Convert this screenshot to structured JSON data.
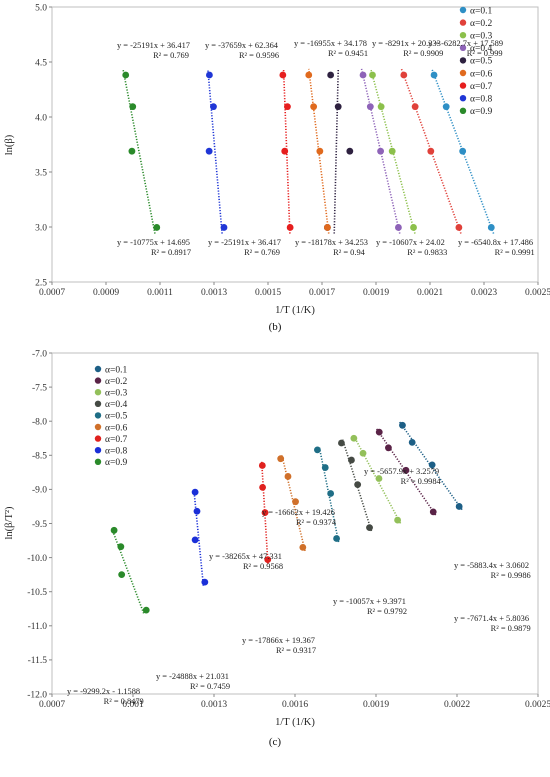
{
  "chart_data": [
    {
      "type": "scatter",
      "panel": "b",
      "caption": "(b)",
      "xlabel": "1/T (1/K)",
      "ylabel": "ln(β)",
      "xlim": [
        0.0007,
        0.0025
      ],
      "ylim": [
        2.5,
        5.0
      ],
      "xticks": [
        "0.0007",
        "0.0009",
        "0.0011",
        "0.0013",
        "0.0015",
        "0.0017",
        "0.0019",
        "0.0021",
        "0.0023",
        "0.0025"
      ],
      "yticks": [
        "2.5",
        "3.0",
        "3.5",
        "4.0",
        "4.5",
        "5.0"
      ],
      "legend_position": "top-right",
      "y_levels": [
        2.996,
        3.689,
        4.094,
        4.382
      ],
      "series": [
        {
          "name": "α=0.1",
          "color": "#2e8fc5",
          "x": [
            0.002327,
            0.002221,
            0.00216,
            0.002115
          ],
          "slope": -6540.8,
          "intercept": 17.486
        },
        {
          "name": "α=0.2",
          "color": "#e0413a",
          "x": [
            0.002207,
            0.002103,
            0.002045,
            0.002003
          ],
          "slope": -6282.7,
          "intercept": 17.589
        },
        {
          "name": "α=0.3",
          "color": "#8cc04b",
          "x": [
            0.002039,
            0.00196,
            0.001919,
            0.001887
          ],
          "slope": -8291.0,
          "intercept": 20.333
        },
        {
          "name": "α=0.4",
          "color": "#8e63b8",
          "x": [
            0.001983,
            0.001917,
            0.001879,
            0.001852
          ],
          "slope": -10607.0,
          "intercept": 24.02
        },
        {
          "name": "α=0.5",
          "color": "#2e2140",
          "x": [
            0.00172,
            0.001803,
            0.00176,
            0.001732
          ],
          "slope": -16955.0,
          "intercept": 34.178
        },
        {
          "name": "α=0.6",
          "color": "#e06a1e",
          "x": [
            0.00172,
            0.001692,
            0.001669,
            0.001651
          ],
          "slope": -18178.0,
          "intercept": 34.253
        },
        {
          "name": "α=0.7",
          "color": "#e61e1e",
          "x": [
            0.001582,
            0.001562,
            0.001572,
            0.001555
          ],
          "slope": -25191.0,
          "intercept": 36.417
        },
        {
          "name": "α=0.8",
          "color": "#1f36d6",
          "x": [
            0.001337,
            0.001282,
            0.001298,
            0.001283
          ],
          "slope": -37659.0,
          "intercept": 62.364
        },
        {
          "name": "α=0.9",
          "color": "#2a8a2a",
          "x": [
            0.001088,
            0.000996,
            0.000999,
            0.000973
          ],
          "slope": -10775.0,
          "intercept": 14.695
        }
      ],
      "annotations": [
        {
          "eq": "y = -25191x + 36.417",
          "r2": "R² = 0.769"
        },
        {
          "eq": "y = -37659x + 62.364",
          "r2": "R² = 0.9596"
        },
        {
          "eq": "y = -16955x + 34.178",
          "r2": "R² = 0.9451"
        },
        {
          "eq": "y = -8291x + 20.333",
          "r2": "R² = 0.9909"
        },
        {
          "eq": "y = -6282.7x + 17.589",
          "r2": "R² = 0.999"
        },
        {
          "eq": "y = -10775x + 14.695",
          "r2": "R² = 0.8917"
        },
        {
          "eq": "y = -25191x + 36.417",
          "r2": "R² = 0.769"
        },
        {
          "eq": "y = -18178x + 34.253",
          "r2": "R² = 0.94"
        },
        {
          "eq": "y = -10607x + 24.02",
          "r2": "R² = 0.9833"
        },
        {
          "eq": "y = -6540.8x + 17.486",
          "r2": "R² = 0.9991"
        }
      ]
    },
    {
      "type": "scatter",
      "panel": "c",
      "caption": "(c)",
      "xlabel": "1/T (1/K)",
      "ylabel": "ln(β/T²)",
      "xlim": [
        0.0007,
        0.0025
      ],
      "ylim": [
        -12.0,
        -7.0
      ],
      "xticks": [
        "0.0007",
        "0.001",
        "0.0013",
        "0.0016",
        "0.0019",
        "0.0022",
        "0.0025"
      ],
      "yticks": [
        "-7.0",
        "-7.5",
        "-8.0",
        "-8.5",
        "-9.0",
        "-9.5",
        "-10.0",
        "-10.5",
        "-11.0",
        "-11.5",
        "-12.0"
      ],
      "legend_position": "top-left",
      "series": [
        {
          "name": "α=0.1",
          "color": "#1d5f86",
          "x": [
            0.001998,
            0.002034,
            0.002108,
            0.002208
          ],
          "y": [
            -8.06,
            -8.31,
            -8.64,
            -9.25
          ]
        },
        {
          "name": "α=0.2",
          "color": "#5a2347",
          "x": [
            0.001912,
            0.001946,
            0.002011,
            0.002112
          ],
          "y": [
            -8.16,
            -8.39,
            -8.72,
            -9.33
          ]
        },
        {
          "name": "α=0.3",
          "color": "#93c05a",
          "x": [
            0.001818,
            0.001852,
            0.001911,
            0.00198
          ],
          "y": [
            -8.25,
            -8.47,
            -8.84,
            -9.45
          ]
        },
        {
          "name": "α=0.4",
          "color": "#454a44",
          "x": [
            0.001772,
            0.001809,
            0.001832,
            0.001876
          ],
          "y": [
            -8.32,
            -8.57,
            -8.93,
            -9.56
          ]
        },
        {
          "name": "α=0.5",
          "color": "#1f6e86",
          "x": [
            0.001683,
            0.001712,
            0.001732,
            0.001754
          ],
          "y": [
            -8.42,
            -8.68,
            -9.06,
            -9.72
          ]
        },
        {
          "name": "α=0.6",
          "color": "#d0702a",
          "x": [
            0.001547,
            0.001574,
            0.001602,
            0.001629
          ],
          "y": [
            -8.55,
            -8.81,
            -9.18,
            -9.85
          ]
        },
        {
          "name": "α=0.7",
          "color": "#e0211e",
          "x": [
            0.001479,
            0.00148,
            0.001489,
            0.001499
          ],
          "y": [
            -8.65,
            -8.97,
            -9.34,
            -10.03
          ]
        },
        {
          "name": "α=0.8",
          "color": "#1a2fd8",
          "x": [
            0.00123,
            0.001237,
            0.00123,
            0.001266
          ],
          "y": [
            -9.04,
            -9.32,
            -9.74,
            -10.36
          ]
        },
        {
          "name": "α=0.9",
          "color": "#2a8a2a",
          "x": [
            0.00093,
            0.000955,
            0.000958,
            0.001049
          ],
          "y": [
            -9.6,
            -9.84,
            -10.25,
            -10.77
          ]
        }
      ],
      "annotations": [
        {
          "eq": "y = -5657.9x + 3.2579",
          "r2": "R² = 0.9984"
        },
        {
          "eq": "y = -16662x + 19.426",
          "r2": "R² = 0.9374"
        },
        {
          "eq": "y = -38265x + 47.331",
          "r2": "R² = 0.9568"
        },
        {
          "eq": "y = -5883.4x + 3.0602",
          "r2": "R² = 0.9986"
        },
        {
          "eq": "y = -7671.4x + 5.8036",
          "r2": "R² = 0.9879"
        },
        {
          "eq": "y = -10057x + 9.3971",
          "r2": "R² = 0.9792"
        },
        {
          "eq": "y = -17866x + 19.367",
          "r2": "R² = 0.9317"
        },
        {
          "eq": "y = -24888x + 21.031",
          "r2": "R² = 0.7459"
        },
        {
          "eq": "y = -9299.2x - 1.1588",
          "r2": "R² = 0.8479"
        }
      ]
    }
  ]
}
